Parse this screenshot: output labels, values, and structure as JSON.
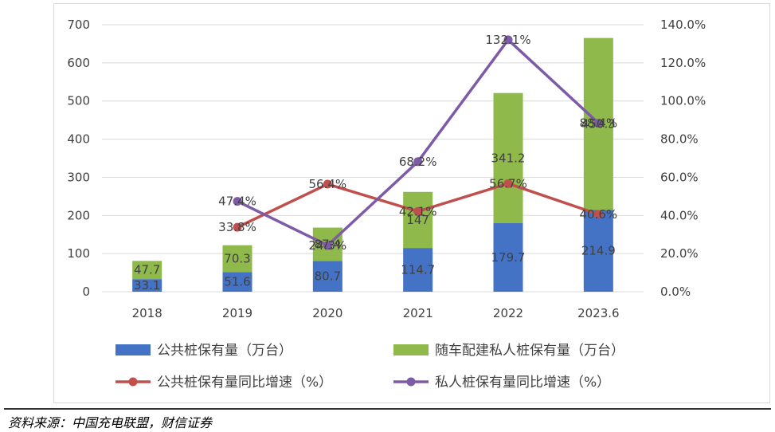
{
  "chart_data": {
    "type": "bar",
    "stacked": true,
    "categories": [
      "2018",
      "2019",
      "2020",
      "2021",
      "2022",
      "2023.6"
    ],
    "series": [
      {
        "name": "公共桩保有量（万台）",
        "kind": "bar",
        "color": "#4472c4",
        "values": [
          33.1,
          51.6,
          80.7,
          114.7,
          179.7,
          214.9
        ],
        "labels": [
          "33.1",
          "51.6",
          "80.7",
          "114.7",
          "179.7",
          "214.9"
        ]
      },
      {
        "name": "随车配建私人桩保有量（万台）",
        "kind": "bar",
        "color": "#8fb94a",
        "values": [
          47.7,
          70.3,
          87.4,
          147,
          341.2,
          450.3
        ],
        "labels": [
          "47.7",
          "70.3",
          "87.4",
          "147",
          "341.2",
          "450.3"
        ]
      },
      {
        "name": "公共桩保有量同比增速（%）",
        "kind": "line",
        "axis": "right",
        "color": "#c0504d",
        "values": [
          null,
          33.8,
          56.4,
          42.1,
          56.7,
          40.6
        ],
        "labels": [
          "",
          "33.8%",
          "56.4%",
          "42.1%",
          "56.7%",
          "40.6%"
        ]
      },
      {
        "name": "私人桩保有量同比增速（%）",
        "kind": "line",
        "axis": "right",
        "color": "#7d5ba6",
        "values": [
          null,
          47.4,
          24.3,
          68.2,
          132.1,
          88.4
        ],
        "labels": [
          "",
          "47.4%",
          "24.3%",
          "68.2%",
          "132.1%",
          "88.4%"
        ]
      }
    ],
    "y_left": {
      "min": 0,
      "max": 700,
      "step": 100,
      "ticks": [
        "0",
        "100",
        "200",
        "300",
        "400",
        "500",
        "600",
        "700"
      ]
    },
    "y_right": {
      "min": 0,
      "max": 140,
      "step": 20,
      "ticks": [
        "0.0%",
        "20.0%",
        "40.0%",
        "60.0%",
        "80.0%",
        "100.0%",
        "120.0%",
        "140.0%"
      ]
    },
    "grid": true,
    "legend_position": "bottom"
  },
  "source": "资料来源：中国充电联盟，财信证券"
}
